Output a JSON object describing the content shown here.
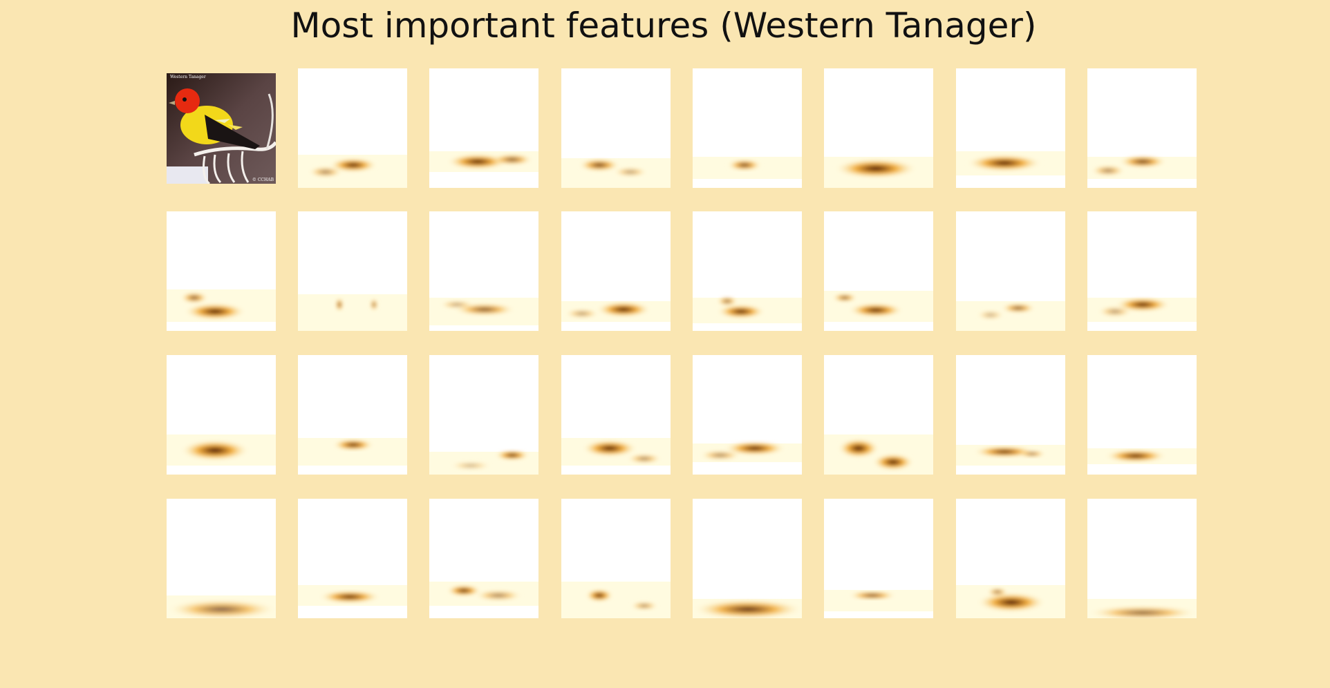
{
  "title": "Most important features (Western Tanager)",
  "photo": {
    "caption": "Western Tanager",
    "copyright": "© CCHAB",
    "icon": "bird-photo"
  },
  "colors": {
    "background": "#fae6b2",
    "heatmap_low": "#fffbe0",
    "heatmap_mid": "#f0a020",
    "heatmap_high": "#3a0800"
  },
  "feature_maps": {
    "rows": 4,
    "columns": 8,
    "count": 31,
    "colormap": "afmhot_r"
  }
}
